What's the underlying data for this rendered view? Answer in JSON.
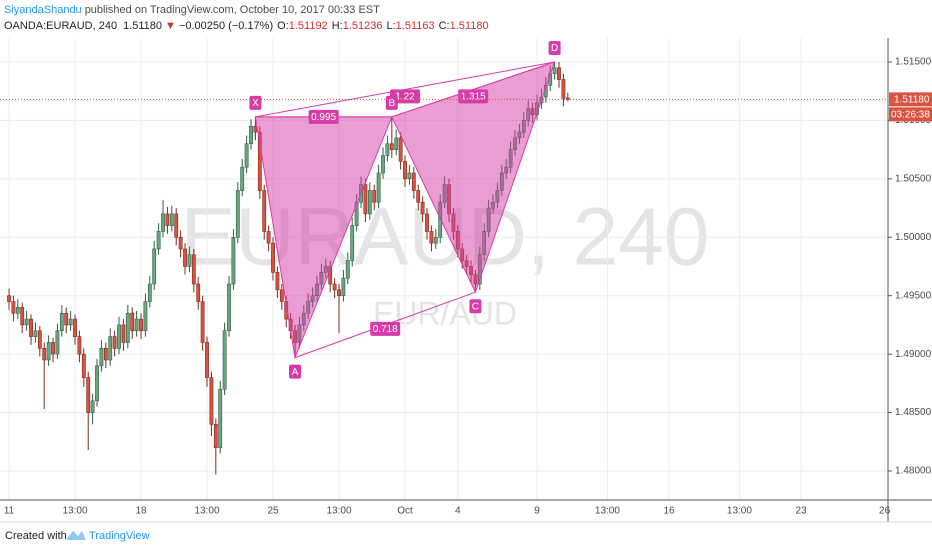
{
  "header": {
    "author": "SiyandaShandu",
    "published": "published on TradingView.com, October 10, 2017 00:33 EST",
    "symbol": "OANDA:EURAUD, 240",
    "last": "1.51180",
    "arrow": "▼",
    "change": "−0.00250 (−0.17%)",
    "ohlc": [
      {
        "key": "O:",
        "value": "1.51192"
      },
      {
        "key": "H:",
        "value": "1.51236"
      },
      {
        "key": "L:",
        "value": "1.51163"
      },
      {
        "key": "C:",
        "value": "1.51180"
      }
    ]
  },
  "footer": {
    "created": "Created with",
    "brand": "TradingView"
  },
  "chart_data": {
    "type": "candlestick",
    "watermark": "EURAUD, 240",
    "watermark_sub": "EUR/AUD",
    "up_color": "#6ba583",
    "down_color": "#d75442",
    "pattern_color": "#d63ca8",
    "grid": true,
    "xlim": [
      -2.05,
      199.77
    ],
    "ylim": [
      1.47752,
      1.51705
    ],
    "xticks": [
      {
        "value": 0,
        "label": "11"
      },
      {
        "value": 15,
        "label": "13:00"
      },
      {
        "value": 30,
        "label": "18"
      },
      {
        "value": 45,
        "label": "13:00"
      },
      {
        "value": 60,
        "label": "25"
      },
      {
        "value": 75,
        "label": "13:00"
      },
      {
        "value": 90,
        "label": "Oct"
      },
      {
        "value": 102,
        "label": "4"
      },
      {
        "value": 120,
        "label": "9"
      },
      {
        "value": 136,
        "label": "13:00"
      },
      {
        "value": 150,
        "label": "16"
      },
      {
        "value": 166,
        "label": "13:00"
      },
      {
        "value": 180,
        "label": "23"
      },
      {
        "value": 199,
        "label": "26"
      }
    ],
    "yticks": [
      {
        "value": 1.48,
        "label": "1.48000"
      },
      {
        "value": 1.485,
        "label": "1.48500"
      },
      {
        "value": 1.49,
        "label": "1.49000"
      },
      {
        "value": 1.495,
        "label": "1.49500"
      },
      {
        "value": 1.5,
        "label": "1.50000"
      },
      {
        "value": 1.505,
        "label": "1.50500"
      },
      {
        "value": 1.51,
        "label": "1.51000"
      },
      {
        "value": 1.515,
        "label": "1.51500"
      }
    ],
    "last": {
      "value": 1.5118,
      "label": "1.51180"
    },
    "countdown": "03:26:38",
    "ohlc": [
      [
        1.495,
        1.4956,
        1.4938,
        1.4945
      ],
      [
        1.4945,
        1.495,
        1.4928,
        1.4935
      ],
      [
        1.4935,
        1.4947,
        1.493,
        1.494
      ],
      [
        1.494,
        1.4944,
        1.4918,
        1.4925
      ],
      [
        1.4925,
        1.4937,
        1.492,
        1.493
      ],
      [
        1.493,
        1.4934,
        1.4908,
        1.4915
      ],
      [
        1.4915,
        1.4927,
        1.491,
        1.492
      ],
      [
        1.492,
        1.4924,
        1.4898,
        1.4905
      ],
      [
        1.4905,
        1.491,
        1.4853,
        1.4895
      ],
      [
        1.4895,
        1.4916,
        1.489,
        1.491
      ],
      [
        1.491,
        1.4914,
        1.4893,
        1.49
      ],
      [
        1.49,
        1.4926,
        1.4896,
        1.492
      ],
      [
        1.492,
        1.4942,
        1.4915,
        1.4935
      ],
      [
        1.4935,
        1.494,
        1.4918,
        1.4925
      ],
      [
        1.4925,
        1.4937,
        1.492,
        1.493
      ],
      [
        1.493,
        1.4934,
        1.4908,
        1.4915
      ],
      [
        1.4915,
        1.492,
        1.4893,
        1.49
      ],
      [
        1.49,
        1.4905,
        1.4872,
        1.488
      ],
      [
        1.488,
        1.4885,
        1.4818,
        1.485
      ],
      [
        1.485,
        1.4866,
        1.484,
        1.486
      ],
      [
        1.486,
        1.4896,
        1.4855,
        1.489
      ],
      [
        1.489,
        1.4912,
        1.4885,
        1.4905
      ],
      [
        1.4905,
        1.491,
        1.4888,
        1.4895
      ],
      [
        1.4895,
        1.4922,
        1.489,
        1.4915
      ],
      [
        1.4915,
        1.492,
        1.4898,
        1.4905
      ],
      [
        1.4905,
        1.4932,
        1.49,
        1.4925
      ],
      [
        1.4925,
        1.493,
        1.4903,
        1.491
      ],
      [
        1.491,
        1.4942,
        1.4905,
        1.4935
      ],
      [
        1.4935,
        1.494,
        1.4913,
        1.492
      ],
      [
        1.492,
        1.4937,
        1.4915,
        1.493
      ],
      [
        1.493,
        1.4935,
        1.4913,
        1.492
      ],
      [
        1.492,
        1.4952,
        1.4915,
        1.4945
      ],
      [
        1.4945,
        1.4967,
        1.494,
        1.496
      ],
      [
        1.496,
        1.4997,
        1.4955,
        1.499
      ],
      [
        1.499,
        1.5012,
        1.4985,
        1.5005
      ],
      [
        1.5005,
        1.5032,
        1.5,
        1.502
      ],
      [
        1.502,
        1.5026,
        1.5003,
        1.501
      ],
      [
        1.501,
        1.5027,
        1.5005,
        1.502
      ],
      [
        1.502,
        1.5025,
        1.4993,
        1.5
      ],
      [
        1.5,
        1.5006,
        1.4983,
        1.499
      ],
      [
        1.499,
        1.4995,
        1.4968,
        1.4975
      ],
      [
        1.4975,
        1.4992,
        1.497,
        1.4985
      ],
      [
        1.4985,
        1.499,
        1.4953,
        1.496
      ],
      [
        1.496,
        1.4966,
        1.4938,
        1.4945
      ],
      [
        1.4945,
        1.495,
        1.4903,
        1.491
      ],
      [
        1.491,
        1.4915,
        1.4872,
        1.488
      ],
      [
        1.488,
        1.4885,
        1.483,
        1.484
      ],
      [
        1.484,
        1.4845,
        1.4797,
        1.482
      ],
      [
        1.482,
        1.4877,
        1.4815,
        1.487
      ],
      [
        1.487,
        1.4927,
        1.4865,
        1.492
      ],
      [
        1.492,
        1.4967,
        1.4915,
        1.496
      ],
      [
        1.496,
        1.5007,
        1.4955,
        1.5
      ],
      [
        1.5,
        1.5047,
        1.4995,
        1.504
      ],
      [
        1.504,
        1.5067,
        1.5035,
        1.506
      ],
      [
        1.506,
        1.5087,
        1.5055,
        1.508
      ],
      [
        1.508,
        1.5101,
        1.5075,
        1.5095
      ],
      [
        1.5095,
        1.5103,
        1.5083,
        1.509
      ],
      [
        1.509,
        1.5095,
        1.5033,
        1.504
      ],
      [
        1.504,
        1.5045,
        1.4998,
        1.5005
      ],
      [
        1.5005,
        1.501,
        1.4988,
        1.4995
      ],
      [
        1.4995,
        1.5,
        1.4963,
        1.497
      ],
      [
        1.497,
        1.4975,
        1.4948,
        1.4955
      ],
      [
        1.4955,
        1.496,
        1.4938,
        1.4945
      ],
      [
        1.4945,
        1.495,
        1.4923,
        1.493
      ],
      [
        1.493,
        1.4935,
        1.4913,
        1.492
      ],
      [
        1.492,
        1.4925,
        1.4897,
        1.491
      ],
      [
        1.491,
        1.4932,
        1.4905,
        1.4925
      ],
      [
        1.4925,
        1.4942,
        1.492,
        1.4935
      ],
      [
        1.4935,
        1.4952,
        1.493,
        1.4945
      ],
      [
        1.4945,
        1.4957,
        1.494,
        1.495
      ],
      [
        1.495,
        1.4967,
        1.4945,
        1.496
      ],
      [
        1.496,
        1.4977,
        1.4955,
        1.497
      ],
      [
        1.497,
        1.4982,
        1.4965,
        1.4975
      ],
      [
        1.4975,
        1.498,
        1.4953,
        1.496
      ],
      [
        1.496,
        1.4965,
        1.4948,
        1.4955
      ],
      [
        1.4955,
        1.496,
        1.4918,
        1.495
      ],
      [
        1.495,
        1.4972,
        1.4945,
        1.4965
      ],
      [
        1.4965,
        1.4987,
        1.496,
        1.498
      ],
      [
        1.498,
        1.5017,
        1.4975,
        1.501
      ],
      [
        1.501,
        1.5037,
        1.5005,
        1.503
      ],
      [
        1.503,
        1.5052,
        1.5025,
        1.5045
      ],
      [
        1.5045,
        1.505,
        1.5013,
        1.502
      ],
      [
        1.502,
        1.5047,
        1.5015,
        1.504
      ],
      [
        1.504,
        1.5045,
        1.5023,
        1.503
      ],
      [
        1.503,
        1.5062,
        1.5025,
        1.5055
      ],
      [
        1.5055,
        1.5077,
        1.505,
        1.507
      ],
      [
        1.507,
        1.5087,
        1.5065,
        1.508
      ],
      [
        1.508,
        1.5103,
        1.5068,
        1.5075
      ],
      [
        1.5075,
        1.5092,
        1.507,
        1.5085
      ],
      [
        1.5085,
        1.509,
        1.5058,
        1.5065
      ],
      [
        1.5065,
        1.507,
        1.5043,
        1.505
      ],
      [
        1.505,
        1.5062,
        1.5045,
        1.5055
      ],
      [
        1.5055,
        1.506,
        1.5033,
        1.504
      ],
      [
        1.504,
        1.5045,
        1.5023,
        1.503
      ],
      [
        1.503,
        1.5035,
        1.5013,
        1.502
      ],
      [
        1.502,
        1.5025,
        1.4998,
        1.5005
      ],
      [
        1.5005,
        1.501,
        1.4988,
        1.4995
      ],
      [
        1.4995,
        1.5007,
        1.499,
        1.5
      ],
      [
        1.5,
        1.5037,
        1.4995,
        1.503
      ],
      [
        1.503,
        1.5052,
        1.5025,
        1.5045
      ],
      [
        1.5045,
        1.505,
        1.5013,
        1.502
      ],
      [
        1.502,
        1.5025,
        1.4998,
        1.5005
      ],
      [
        1.5005,
        1.501,
        1.4983,
        1.499
      ],
      [
        1.499,
        1.4995,
        1.4973,
        1.498
      ],
      [
        1.498,
        1.4985,
        1.4968,
        1.4975
      ],
      [
        1.4975,
        1.498,
        1.4961,
        1.4968
      ],
      [
        1.4968,
        1.4972,
        1.4953,
        1.496
      ],
      [
        1.496,
        1.4992,
        1.4955,
        1.4985
      ],
      [
        1.4985,
        1.5012,
        1.498,
        1.5005
      ],
      [
        1.5005,
        1.5032,
        1.5,
        1.5025
      ],
      [
        1.5025,
        1.5037,
        1.502,
        1.503
      ],
      [
        1.503,
        1.5047,
        1.5025,
        1.504
      ],
      [
        1.504,
        1.5062,
        1.5035,
        1.5055
      ],
      [
        1.5055,
        1.5067,
        1.505,
        1.506
      ],
      [
        1.506,
        1.5082,
        1.5055,
        1.5075
      ],
      [
        1.5075,
        1.5092,
        1.507,
        1.5085
      ],
      [
        1.5085,
        1.5097,
        1.508,
        1.509
      ],
      [
        1.509,
        1.5107,
        1.5085,
        1.51
      ],
      [
        1.51,
        1.5117,
        1.5095,
        1.511
      ],
      [
        1.511,
        1.5115,
        1.5098,
        1.5105
      ],
      [
        1.5105,
        1.5122,
        1.51,
        1.5115
      ],
      [
        1.5115,
        1.5127,
        1.511,
        1.512
      ],
      [
        1.512,
        1.5137,
        1.5115,
        1.513
      ],
      [
        1.513,
        1.5147,
        1.5125,
        1.514
      ],
      [
        1.514,
        1.515,
        1.5135,
        1.5145
      ],
      [
        1.5145,
        1.515,
        1.5128,
        1.5135
      ],
      [
        1.5135,
        1.514,
        1.5112,
        1.5119
      ],
      [
        1.51192,
        1.51236,
        1.51163,
        1.5118
      ]
    ],
    "pattern": {
      "points": [
        {
          "label": "X",
          "x": 56,
          "price": 1.5103
        },
        {
          "label": "A",
          "x": 65,
          "price": 1.4897
        },
        {
          "label": "B",
          "x": 87,
          "price": 1.5103
        },
        {
          "label": "C",
          "x": 106,
          "price": 1.4953
        },
        {
          "label": "D",
          "x": 124,
          "price": 1.515
        }
      ],
      "ratios": [
        0.995,
        1.22,
        1.315,
        0.718
      ]
    }
  }
}
